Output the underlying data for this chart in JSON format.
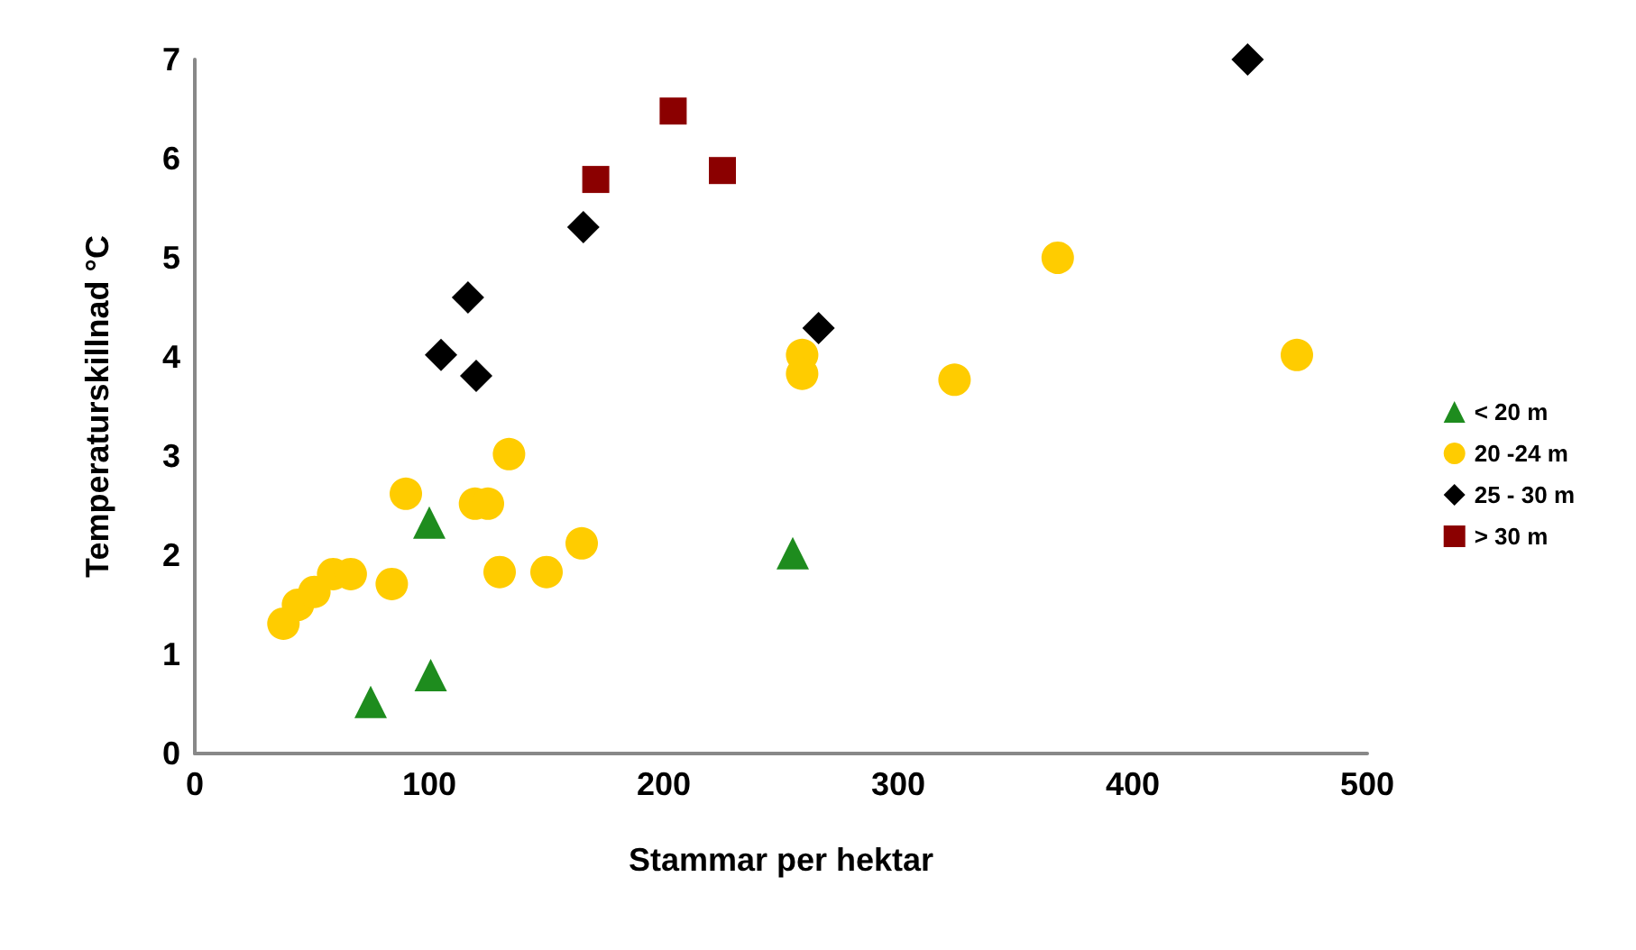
{
  "chart_data": {
    "type": "scatter",
    "xlabel": "Stammar per hektar",
    "ylabel": "Temperaturskillnad °C",
    "xlim": [
      0,
      500
    ],
    "xticks": [
      0,
      100,
      200,
      300,
      400,
      500
    ],
    "ylim": [
      0,
      7
    ],
    "yticks": [
      0,
      1,
      2,
      3,
      4,
      5,
      6,
      7
    ],
    "grid": false,
    "legend": "right",
    "series": [
      {
        "name": "< 20 m",
        "color": "#1e8c1e",
        "marker": "triangle",
        "x": [
          75,
          100.6,
          100,
          255
        ],
        "values": [
          0.52,
          0.79,
          2.33,
          2.02
        ]
      },
      {
        "name": "20 -24 m",
        "color": "#ffcc00",
        "marker": "circle",
        "x": [
          37.8,
          44,
          51,
          59,
          66.5,
          84,
          90,
          119.5,
          125,
          134,
          130,
          150,
          165,
          259,
          259,
          324,
          368,
          470
        ],
        "values": [
          1.31,
          1.5,
          1.63,
          1.81,
          1.81,
          1.71,
          2.62,
          2.52,
          2.52,
          3.02,
          1.83,
          1.83,
          2.12,
          4.02,
          3.83,
          3.77,
          5.0,
          4.02
        ]
      },
      {
        "name": "25 - 30 m",
        "color": "#000000",
        "marker": "diamond",
        "x": [
          105,
          116.5,
          120,
          165.7,
          266,
          449
        ],
        "values": [
          4.02,
          4.6,
          3.81,
          5.31,
          4.29,
          7.0
        ]
      },
      {
        "name": "> 30 m",
        "color": "#8b0000",
        "marker": "square",
        "x": [
          171,
          204,
          225
        ],
        "values": [
          5.79,
          6.48,
          5.88
        ]
      }
    ]
  }
}
